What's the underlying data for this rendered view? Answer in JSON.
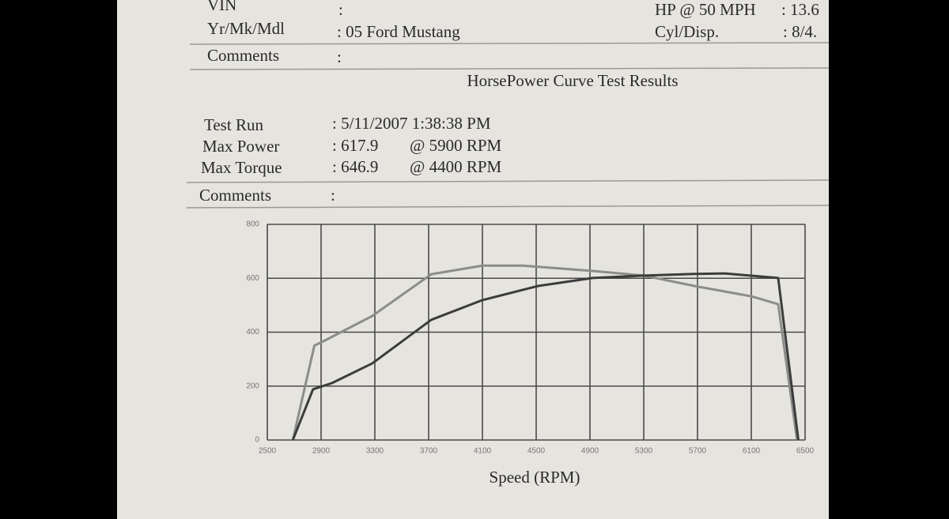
{
  "header": {
    "vin_label": "VIN",
    "vin_value": ":",
    "hp_label": "HP @ 50 MPH",
    "hp_value": ": 13.6",
    "ymm_label": "Yr/Mk/Mdl",
    "ymm_value": ": 05 Ford  Mustang",
    "cyl_label": "Cyl/Disp.",
    "cyl_value": ": 8/4.",
    "comments_label": "Comments",
    "comments_value": ":"
  },
  "results": {
    "title": "HorsePower Curve Test Results",
    "test_run_label": "Test Run",
    "test_run_value": ": 5/11/2007 1:38:38 PM",
    "max_power_label": "Max Power",
    "max_power_value": ": 617.9",
    "max_power_rpm": "@ 5900  RPM",
    "max_torque_label": "Max Torque",
    "max_torque_value": ": 646.9",
    "max_torque_rpm": "@ 4400  RPM",
    "comments_label": "Comments",
    "comments_value": ":"
  },
  "chart_data": {
    "type": "line",
    "x_label": "Speed (RPM)",
    "xlim": [
      2500,
      6500
    ],
    "xticks": [
      2500,
      2900,
      3300,
      3700,
      4100,
      4500,
      4900,
      5300,
      5700,
      6100,
      6500
    ],
    "ylim": [
      0,
      800
    ],
    "yticks": [
      0,
      200,
      400,
      600,
      800
    ],
    "grid": true,
    "series": [
      {
        "color": "#8c8c8a",
        "x": [
          2690,
          2850,
          2920,
          3280,
          3720,
          4100,
          4400,
          4920,
          5300,
          5680,
          6100,
          6300,
          6440
        ],
        "values": [
          0,
          350,
          367,
          460,
          615,
          647,
          647,
          627,
          610,
          571,
          533,
          504,
          0
        ]
      },
      {
        "color": "#3c3c3c",
        "x": [
          2690,
          2840,
          2980,
          3280,
          3720,
          4100,
          4510,
          4920,
          5300,
          5680,
          5900,
          6300,
          6450
        ],
        "values": [
          0,
          188,
          211,
          284,
          446,
          519,
          571,
          601,
          610,
          616,
          618,
          601,
          0
        ]
      }
    ]
  }
}
